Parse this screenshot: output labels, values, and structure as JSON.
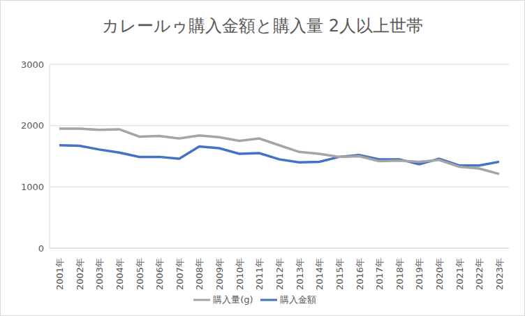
{
  "chart_data": {
    "type": "line",
    "title": "カレールゥ購入金額と購入量 2人以上世帯",
    "categories": [
      "2001年",
      "2002年",
      "2003年",
      "2004年",
      "2005年",
      "2006年",
      "2007年",
      "2008年",
      "2009年",
      "2010年",
      "2011年",
      "2012年",
      "2013年",
      "2014年",
      "2015年",
      "2016年",
      "2017年",
      "2018年",
      "2019年",
      "2020年",
      "2021年",
      "2022年",
      "2023年"
    ],
    "series": [
      {
        "name": "購入金額",
        "color": "#4472c4",
        "values": [
          1680,
          1670,
          1610,
          1560,
          1490,
          1490,
          1460,
          1660,
          1630,
          1540,
          1550,
          1450,
          1400,
          1410,
          1490,
          1520,
          1450,
          1450,
          1370,
          1460,
          1350,
          1350,
          1410
        ]
      },
      {
        "name": "購入量(g)",
        "color": "#a5a5a5",
        "values": [
          1950,
          1950,
          1930,
          1940,
          1820,
          1830,
          1790,
          1840,
          1810,
          1750,
          1790,
          1680,
          1570,
          1540,
          1490,
          1500,
          1420,
          1430,
          1410,
          1440,
          1330,
          1300,
          1210
        ]
      }
    ],
    "ylim": [
      0,
      3000
    ],
    "yticks": [
      0,
      1000,
      2000,
      3000
    ],
    "grid": true,
    "legend": "bottom"
  }
}
